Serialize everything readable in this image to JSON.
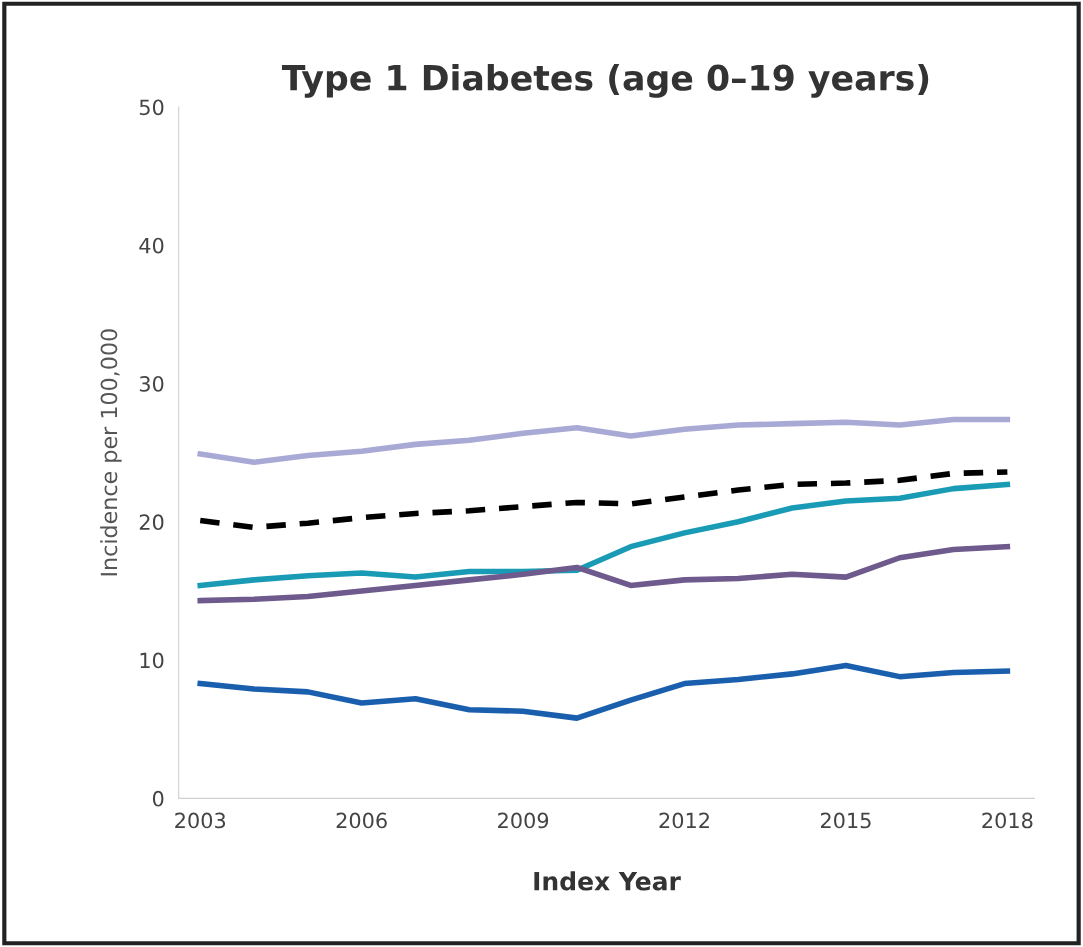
{
  "chart_data": {
    "type": "line",
    "title": "Type 1 Diabetes (age 0–19 years)",
    "xlabel": "Index Year",
    "ylabel": "Incidence per 100,000",
    "x": [
      2003,
      2004,
      2005,
      2006,
      2007,
      2008,
      2009,
      2010,
      2011,
      2012,
      2013,
      2014,
      2015,
      2016,
      2017,
      2018
    ],
    "series": [
      {
        "color": "#a9a9d6",
        "values": [
          24.9,
          24.3,
          24.8,
          25.1,
          25.6,
          25.9,
          26.4,
          26.8,
          26.2,
          26.7,
          27.0,
          27.1,
          27.2,
          27.0,
          27.4,
          27.4
        ]
      },
      {
        "color": "#000000",
        "line_style": "dashed",
        "values": [
          20.1,
          19.6,
          19.9,
          20.3,
          20.6,
          20.8,
          21.1,
          21.4,
          21.3,
          21.8,
          22.3,
          22.7,
          22.8,
          23.0,
          23.5,
          23.6
        ]
      },
      {
        "color": "#1a9bb5",
        "values": [
          15.4,
          15.8,
          16.1,
          16.3,
          16.0,
          16.4,
          16.4,
          16.5,
          18.2,
          19.2,
          20.0,
          21.0,
          21.5,
          21.7,
          22.4,
          22.7
        ]
      },
      {
        "color": "#6e5a8c",
        "values": [
          14.3,
          14.4,
          14.6,
          15.0,
          15.4,
          15.8,
          16.2,
          16.7,
          15.4,
          15.8,
          15.9,
          16.2,
          16.0,
          17.4,
          18.0,
          18.2
        ]
      },
      {
        "color": "#1a5fae",
        "values": [
          8.3,
          7.9,
          7.7,
          6.9,
          7.2,
          6.4,
          6.3,
          5.8,
          7.1,
          8.3,
          8.6,
          9.0,
          9.6,
          8.8,
          9.1,
          9.2
        ]
      }
    ],
    "xlim": [
      2002.6,
      2018.5
    ],
    "xticks": [
      2003,
      2006,
      2009,
      2012,
      2015,
      2018
    ],
    "ylim": [
      0,
      50
    ],
    "yticks": [
      0,
      10,
      20,
      30,
      40,
      50
    ],
    "grid": false,
    "legend": false,
    "marker": "none"
  }
}
